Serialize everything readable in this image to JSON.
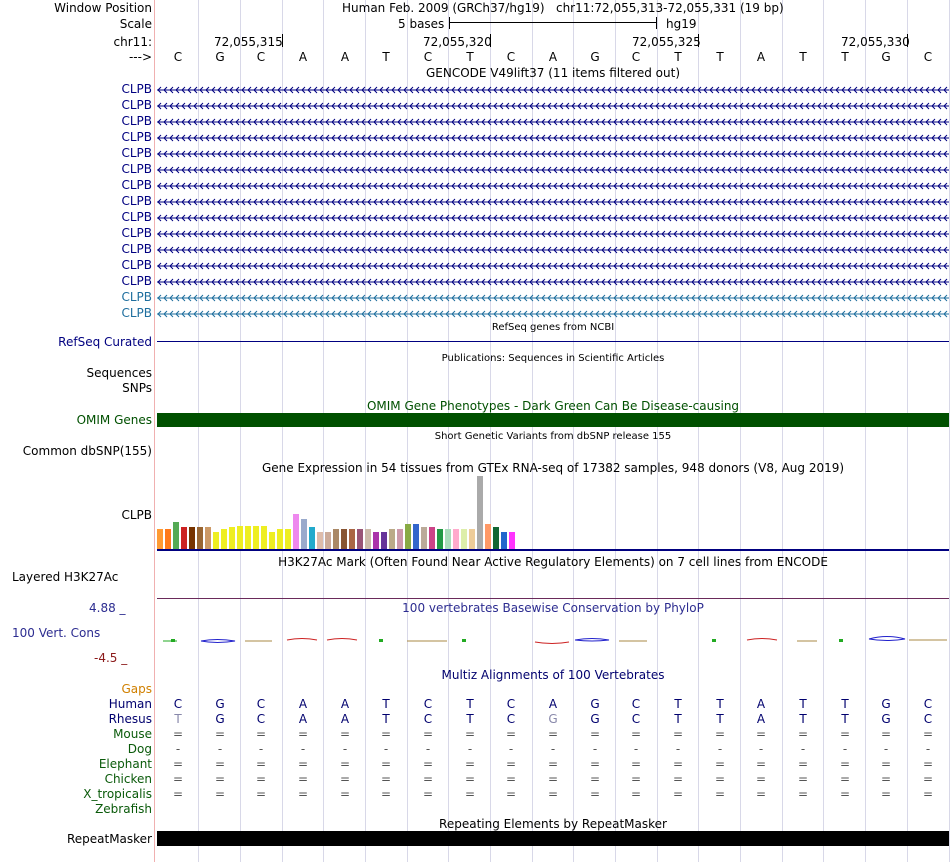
{
  "header": {
    "window_position_label": "Window Position",
    "assembly_title": "Human Feb. 2009 (GRCh37/hg19)",
    "position": "chr11:72,055,313-72,055,331 (19 bp)",
    "scale_label": "Scale",
    "scale_text": "5 bases",
    "scale_db": "hg19",
    "chrom_label": "chr11:",
    "strand_label": "--->",
    "ticks": [
      "72,055,315",
      "72,055,320",
      "72,055,325",
      "72,055,330"
    ]
  },
  "sequence": [
    "C",
    "G",
    "C",
    "A",
    "A",
    "T",
    "C",
    "T",
    "C",
    "A",
    "G",
    "C",
    "T",
    "T",
    "A",
    "T",
    "T",
    "G",
    "C"
  ],
  "gencode": {
    "title": "GENCODE V49lift37 (11 items filtered out)",
    "items": [
      "CLPB",
      "CLPB",
      "CLPB",
      "CLPB",
      "CLPB",
      "CLPB",
      "CLPB",
      "CLPB",
      "CLPB",
      "CLPB",
      "CLPB",
      "CLPB",
      "CLPB",
      "CLPB",
      "CLPB"
    ]
  },
  "refseq": {
    "title": "RefSeq genes from NCBI",
    "label": "RefSeq Curated"
  },
  "publications": {
    "title": "Publications: Sequences in Scientific Articles",
    "labels": [
      "Sequences",
      "SNPs"
    ]
  },
  "omim": {
    "title": "OMIM Gene Phenotypes - Dark Green Can Be Disease-causing",
    "label": "OMIM Genes"
  },
  "dbsnp": {
    "title": "Short Genetic Variants from dbSNP release 155",
    "label": "Common dbSNP(155)"
  },
  "gtex": {
    "title": "Gene Expression in 54 tissues from GTEx RNA-seq of 17382 samples, 948 donors (V8, Aug 2019)",
    "label": "CLPB"
  },
  "h3k27ac": {
    "title": "H3K27Ac Mark (Often Found Near Active Regulatory Elements) on 7 cell lines from ENCODE",
    "label": "Layered H3K27Ac"
  },
  "phylop": {
    "title": "100 vertebrates Basewise Conservation by PhyloP",
    "label": "100 Vert. Cons",
    "max": "4.88 _",
    "min": "-4.5 _"
  },
  "multiz": {
    "title": "Multiz Alignments of 100 Vertebrates",
    "gaps_label": "Gaps",
    "species": [
      {
        "name": "Human",
        "row": [
          "C",
          "G",
          "C",
          "A",
          "A",
          "T",
          "C",
          "T",
          "C",
          "A",
          "G",
          "C",
          "T",
          "T",
          "A",
          "T",
          "T",
          "G",
          "C"
        ]
      },
      {
        "name": "Rhesus",
        "row": [
          "T",
          "G",
          "C",
          "A",
          "A",
          "T",
          "C",
          "T",
          "C",
          "G",
          "G",
          "C",
          "T",
          "T",
          "A",
          "T",
          "T",
          "G",
          "C"
        ]
      },
      {
        "name": "Mouse",
        "row": [
          "=",
          "=",
          "=",
          "=",
          "=",
          "=",
          "=",
          "=",
          "=",
          "=",
          "=",
          "=",
          "=",
          "=",
          "=",
          "=",
          "=",
          "=",
          "="
        ]
      },
      {
        "name": "Dog",
        "row": [
          "-",
          "-",
          "-",
          "-",
          "-",
          "-",
          "-",
          "-",
          "-",
          "-",
          "-",
          "-",
          "-",
          "-",
          "-",
          "-",
          "-",
          "-",
          "-"
        ]
      },
      {
        "name": "Elephant",
        "row": [
          "=",
          "=",
          "=",
          "=",
          "=",
          "=",
          "=",
          "=",
          "=",
          "=",
          "=",
          "=",
          "=",
          "=",
          "=",
          "=",
          "=",
          "=",
          "="
        ]
      },
      {
        "name": "Chicken",
        "row": [
          "=",
          "=",
          "=",
          "=",
          "=",
          "=",
          "=",
          "=",
          "=",
          "=",
          "=",
          "=",
          "=",
          "=",
          "=",
          "=",
          "=",
          "=",
          "="
        ]
      },
      {
        "name": "X_tropicalis",
        "row": [
          "=",
          "=",
          "=",
          "=",
          "=",
          "=",
          "=",
          "=",
          "=",
          "=",
          "=",
          "=",
          "=",
          "=",
          "=",
          "=",
          "=",
          "=",
          "="
        ]
      },
      {
        "name": "Zebrafish",
        "row": []
      }
    ]
  },
  "repeatmasker": {
    "title": "Repeating Elements by RepeatMasker",
    "label": "RepeatMasker"
  },
  "colors": {
    "navy": "#000080",
    "clpb_light": "#1e6e9e",
    "omim_green": "#005000",
    "multiz_navy": "#00006e",
    "species_green": "#0a5a0a",
    "gaps_orange": "#d08000",
    "phylop_label": "#2c2c90",
    "phylop_min": "#8b1a1a"
  }
}
